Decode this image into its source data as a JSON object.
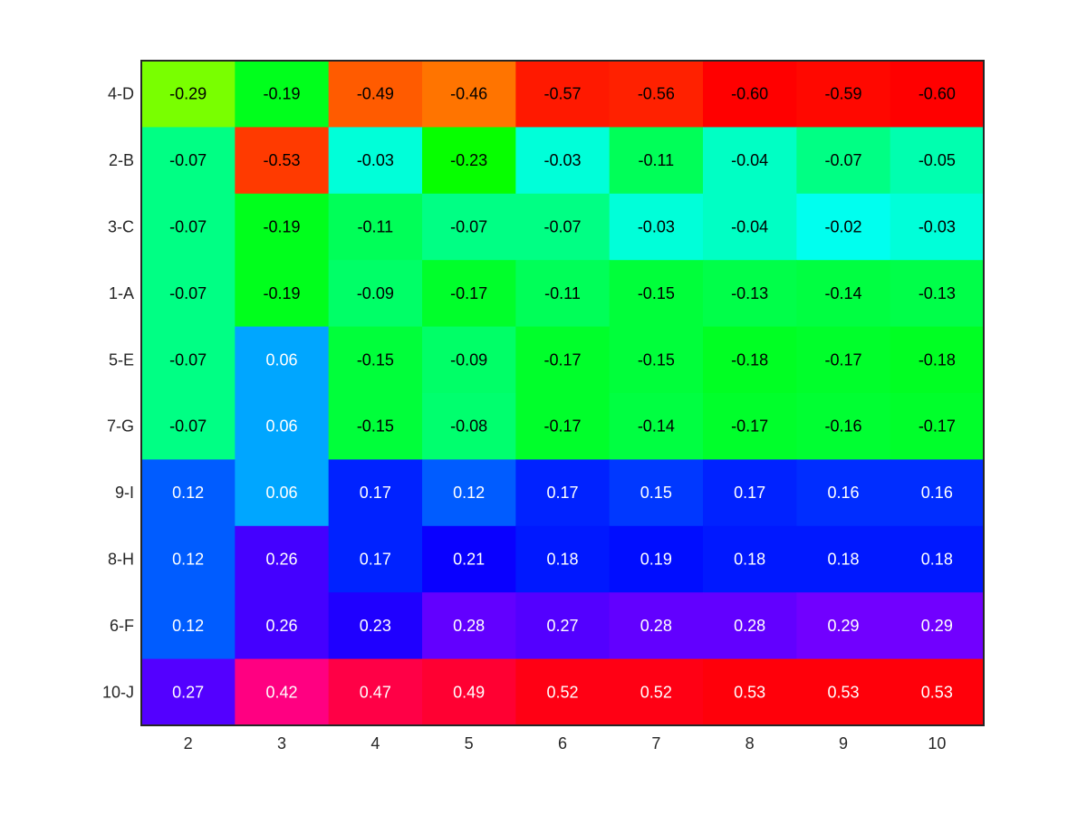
{
  "chart_data": {
    "type": "heatmap",
    "title": "",
    "xlabel": "",
    "ylabel": "",
    "x_categories": [
      "2",
      "3",
      "4",
      "5",
      "6",
      "7",
      "8",
      "9",
      "10"
    ],
    "y_categories": [
      "4-D",
      "2-B",
      "3-C",
      "1-A",
      "5-E",
      "7-G",
      "9-I",
      "8-H",
      "6-F",
      "10-J"
    ],
    "values": [
      [
        -0.29,
        -0.19,
        -0.49,
        -0.46,
        -0.57,
        -0.56,
        -0.6,
        -0.59,
        -0.6
      ],
      [
        -0.07,
        -0.53,
        -0.03,
        -0.23,
        -0.03,
        -0.11,
        -0.04,
        -0.07,
        -0.05
      ],
      [
        -0.07,
        -0.19,
        -0.11,
        -0.07,
        -0.07,
        -0.03,
        -0.04,
        -0.02,
        -0.03
      ],
      [
        -0.07,
        -0.19,
        -0.09,
        -0.17,
        -0.11,
        -0.15,
        -0.13,
        -0.14,
        -0.13
      ],
      [
        -0.07,
        0.06,
        -0.15,
        -0.09,
        -0.17,
        -0.15,
        -0.18,
        -0.17,
        -0.18
      ],
      [
        -0.07,
        0.06,
        -0.15,
        -0.08,
        -0.17,
        -0.14,
        -0.17,
        -0.16,
        -0.17
      ],
      [
        0.12,
        0.06,
        0.17,
        0.12,
        0.17,
        0.15,
        0.17,
        0.16,
        0.16
      ],
      [
        0.12,
        0.26,
        0.17,
        0.21,
        0.18,
        0.19,
        0.18,
        0.18,
        0.18
      ],
      [
        0.12,
        0.26,
        0.23,
        0.28,
        0.27,
        0.28,
        0.28,
        0.29,
        0.29
      ],
      [
        0.27,
        0.42,
        0.47,
        0.49,
        0.52,
        0.52,
        0.53,
        0.53,
        0.53
      ]
    ],
    "cell_labels": [
      [
        "-0.29",
        "-0.19",
        "-0.49",
        "-0.46",
        "-0.57",
        "-0.56",
        "-0.60",
        "-0.59",
        "-0.60"
      ],
      [
        "-0.07",
        "-0.53",
        "-0.03",
        "-0.23",
        "-0.03",
        "-0.11",
        "-0.04",
        "-0.07",
        "-0.05"
      ],
      [
        "-0.07",
        "-0.19",
        "-0.11",
        "-0.07",
        "-0.07",
        "-0.03",
        "-0.04",
        "-0.02",
        "-0.03"
      ],
      [
        "-0.07",
        "-0.19",
        "-0.09",
        "-0.17",
        "-0.11",
        "-0.15",
        "-0.13",
        "-0.14",
        "-0.13"
      ],
      [
        "-0.07",
        "0.06",
        "-0.15",
        "-0.09",
        "-0.17",
        "-0.15",
        "-0.18",
        "-0.17",
        "-0.18"
      ],
      [
        "-0.07",
        "0.06",
        "-0.15",
        "-0.08",
        "-0.17",
        "-0.14",
        "-0.17",
        "-0.16",
        "-0.17"
      ],
      [
        "0.12",
        "0.06",
        "0.17",
        "0.12",
        "0.17",
        "0.15",
        "0.17",
        "0.16",
        "0.16"
      ],
      [
        "0.12",
        "0.26",
        "0.17",
        "0.21",
        "0.18",
        "0.19",
        "0.18",
        "0.18",
        "0.18"
      ],
      [
        "0.12",
        "0.26",
        "0.23",
        "0.28",
        "0.27",
        "0.28",
        "0.28",
        "0.29",
        "0.29"
      ],
      [
        "0.27",
        "0.42",
        "0.47",
        "0.49",
        "0.52",
        "0.52",
        "0.53",
        "0.53",
        "0.53"
      ]
    ],
    "colormap": "hsv",
    "color_range": [
      -0.6,
      0.53
    ],
    "label_colors": {
      "negative": "#000000",
      "positive": "#ffffff"
    },
    "axis_color": "#262626",
    "grid": false,
    "legend": "none"
  }
}
